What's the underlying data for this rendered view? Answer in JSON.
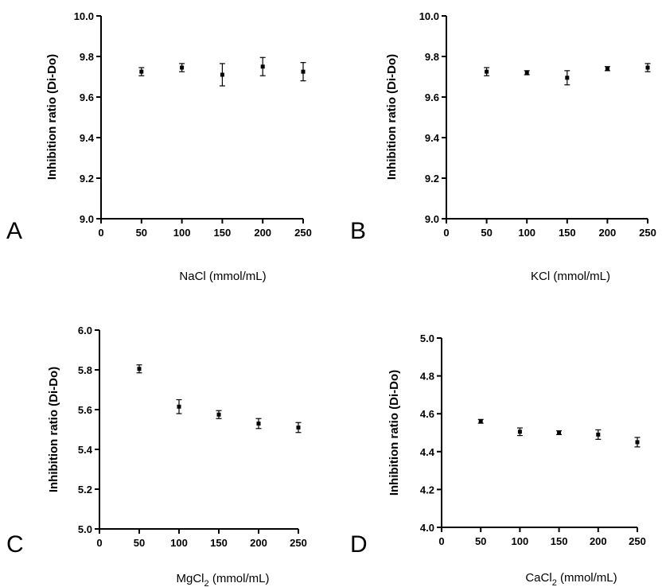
{
  "chart_data": [
    {
      "panel": "A",
      "type": "scatter",
      "xlabel": "NaCl (mmol/mL)",
      "ylabel": "Inhibition ratio (Di-Do)",
      "xlim": [
        0,
        250
      ],
      "ylim": [
        9.0,
        10.0
      ],
      "xticks": [
        "0",
        "50",
        "100",
        "150",
        "200",
        "250"
      ],
      "yticks": [
        "9.0",
        "9.2",
        "9.4",
        "9.6",
        "9.8",
        "10.0"
      ],
      "x": [
        50,
        100,
        150,
        200,
        250
      ],
      "y": [
        9.725,
        9.745,
        9.71,
        9.75,
        9.725
      ],
      "error": [
        0.02,
        0.02,
        0.055,
        0.045,
        0.045
      ]
    },
    {
      "panel": "B",
      "type": "scatter",
      "xlabel": "KCl (mmol/mL)",
      "ylabel": "Inhibition ratio (Di-Do)",
      "xlim": [
        0,
        250
      ],
      "ylim": [
        9.0,
        10.0
      ],
      "xticks": [
        "0",
        "50",
        "100",
        "150",
        "200",
        "250"
      ],
      "yticks": [
        "9.0",
        "9.2",
        "9.4",
        "9.6",
        "9.8",
        "10.0"
      ],
      "x": [
        50,
        100,
        150,
        200,
        250
      ],
      "y": [
        9.725,
        9.72,
        9.695,
        9.74,
        9.745
      ],
      "error": [
        0.02,
        0.01,
        0.035,
        0.01,
        0.02
      ]
    },
    {
      "panel": "C",
      "type": "scatter",
      "xlabel_main": "MgCl",
      "xlabel_sub": "2",
      "xlabel_rest": " (mmol/mL)",
      "ylabel": "Inhibition ratio (Di-Do)",
      "xlim": [
        0,
        250
      ],
      "ylim": [
        5.0,
        6.0
      ],
      "xticks": [
        "0",
        "50",
        "100",
        "150",
        "200",
        "250"
      ],
      "yticks": [
        "5.0",
        "5.2",
        "5.4",
        "5.6",
        "5.8",
        "6.0"
      ],
      "x": [
        50,
        100,
        150,
        200,
        250
      ],
      "y": [
        5.805,
        5.615,
        5.575,
        5.53,
        5.51
      ],
      "error": [
        0.02,
        0.035,
        0.02,
        0.025,
        0.025
      ]
    },
    {
      "panel": "D",
      "type": "scatter",
      "xlabel_main": "CaCl",
      "xlabel_sub": "2",
      "xlabel_rest": " (mmol/mL)",
      "ylabel": "Inhibition ratio (Di-Do)",
      "xlim": [
        0,
        250
      ],
      "ylim": [
        4.0,
        5.0
      ],
      "xticks": [
        "0",
        "50",
        "100",
        "150",
        "200",
        "250"
      ],
      "yticks": [
        "4.0",
        "4.2",
        "4.4",
        "4.6",
        "4.8",
        "5.0"
      ],
      "x": [
        50,
        100,
        150,
        200,
        250
      ],
      "y": [
        4.56,
        4.505,
        4.5,
        4.49,
        4.45
      ],
      "error": [
        0.01,
        0.02,
        0.01,
        0.025,
        0.025
      ]
    }
  ]
}
